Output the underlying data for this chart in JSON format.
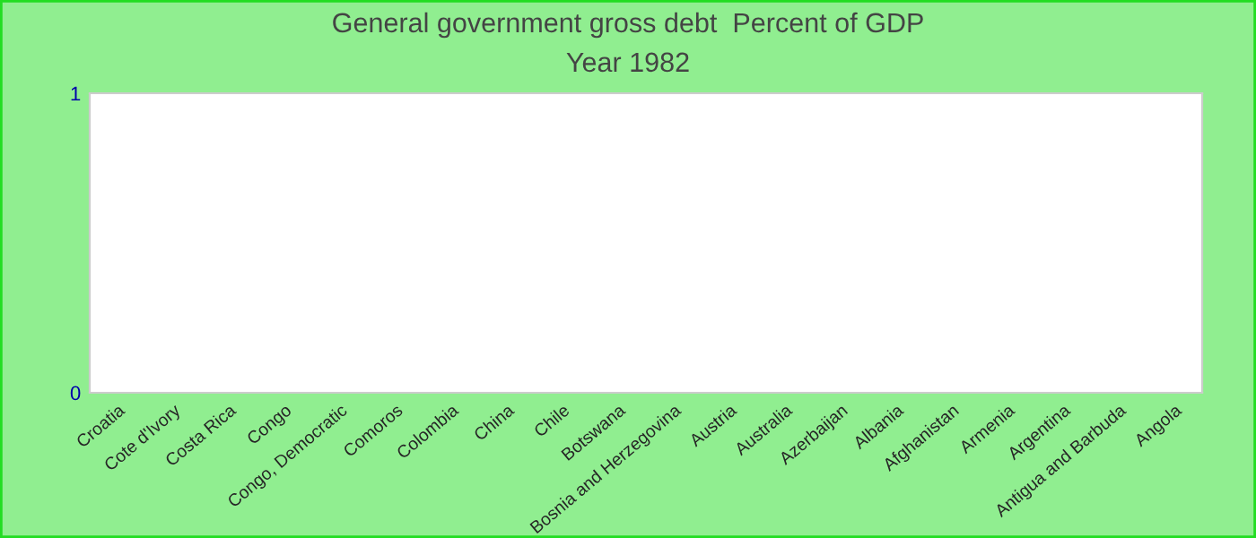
{
  "chart_data": {
    "type": "bar",
    "title": "General government gross debt  Percent of GDP",
    "subtitle": "Year 1982",
    "categories": [
      "Croatia",
      "Cote d'Ivory",
      "Costa Rica",
      "Congo",
      "Congo, Democratic",
      "Comoros",
      "Colombia",
      "China",
      "Chile",
      "Botswana",
      "Bosnia and Herzegovina",
      "Austria",
      "Australia",
      "Azerbaijan",
      "Albania",
      "Afghanistan",
      "Armenia",
      "Argentina",
      "Antigua and Barbuda",
      "Angola"
    ],
    "values": [
      null,
      null,
      null,
      null,
      null,
      null,
      null,
      null,
      null,
      null,
      null,
      null,
      null,
      null,
      null,
      null,
      null,
      null,
      null,
      null
    ],
    "ylim": [
      0,
      1
    ],
    "yticks": [
      0,
      1
    ],
    "grid": false,
    "legend": false
  }
}
